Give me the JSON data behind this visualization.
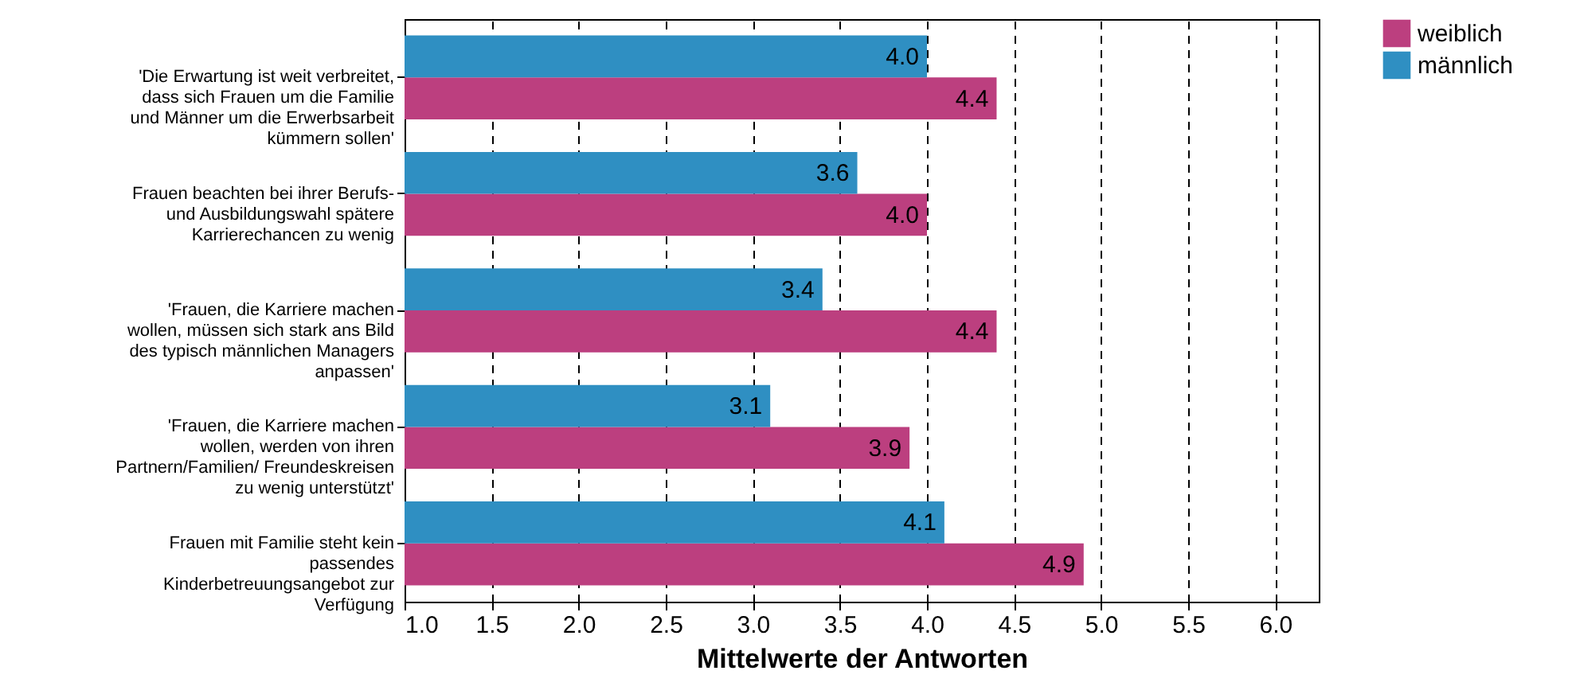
{
  "chart_data": {
    "type": "bar",
    "orientation": "horizontal",
    "xlabel": "Mittelwerte der Antworten",
    "categories": [
      "'Die Erwartung ist weit verbreitet,\ndass sich Frauen um die Familie\nund Männer um die Erwerbsarbeit\nkümmern sollen'",
      "Frauen beachten bei ihrer Berufs-\nund Ausbildungswahl spätere\nKarrierechancen zu wenig",
      "'Frauen, die Karriere machen\nwollen, müssen sich stark ans Bild\ndes typisch männlichen Managers\nanpassen'",
      "'Frauen, die Karriere machen\nwollen, werden von ihren\nPartnern/Familien/ Freundeskreisen\nzu wenig unterstützt'",
      "Frauen mit Familie steht kein\npassendes\nKinderbetreuungsangebot zur\nVerfügung"
    ],
    "series": [
      {
        "name": "weiblich",
        "color": "#bc3f7f",
        "values": [
          4.4,
          4.0,
          4.4,
          3.9,
          4.9
        ],
        "value_labels": [
          "4.4",
          "4.0",
          "4.4",
          "3.9",
          "4.9"
        ]
      },
      {
        "name": "männlich",
        "color": "#2f8fc2",
        "values": [
          4.0,
          3.6,
          3.4,
          3.1,
          4.1
        ],
        "value_labels": [
          "4.0",
          "3.6",
          "3.4",
          "3.1",
          "4.1"
        ]
      }
    ],
    "xlim": [
      1.0,
      6.25
    ],
    "xticks": [
      {
        "value": 1.0,
        "label": "1.0"
      },
      {
        "value": 1.5,
        "label": "1.5"
      },
      {
        "value": 2.0,
        "label": "2.0"
      },
      {
        "value": 2.5,
        "label": "2.5"
      },
      {
        "value": 3.0,
        "label": "3.0"
      },
      {
        "value": 3.5,
        "label": "3.5"
      },
      {
        "value": 4.0,
        "label": "4.0"
      },
      {
        "value": 4.5,
        "label": "4.5"
      },
      {
        "value": 5.0,
        "label": "5.0"
      },
      {
        "value": 5.5,
        "label": "5.5"
      },
      {
        "value": 6.0,
        "label": "6.0"
      }
    ],
    "grid": "x",
    "line_style": "dashed",
    "legend": "top right"
  }
}
